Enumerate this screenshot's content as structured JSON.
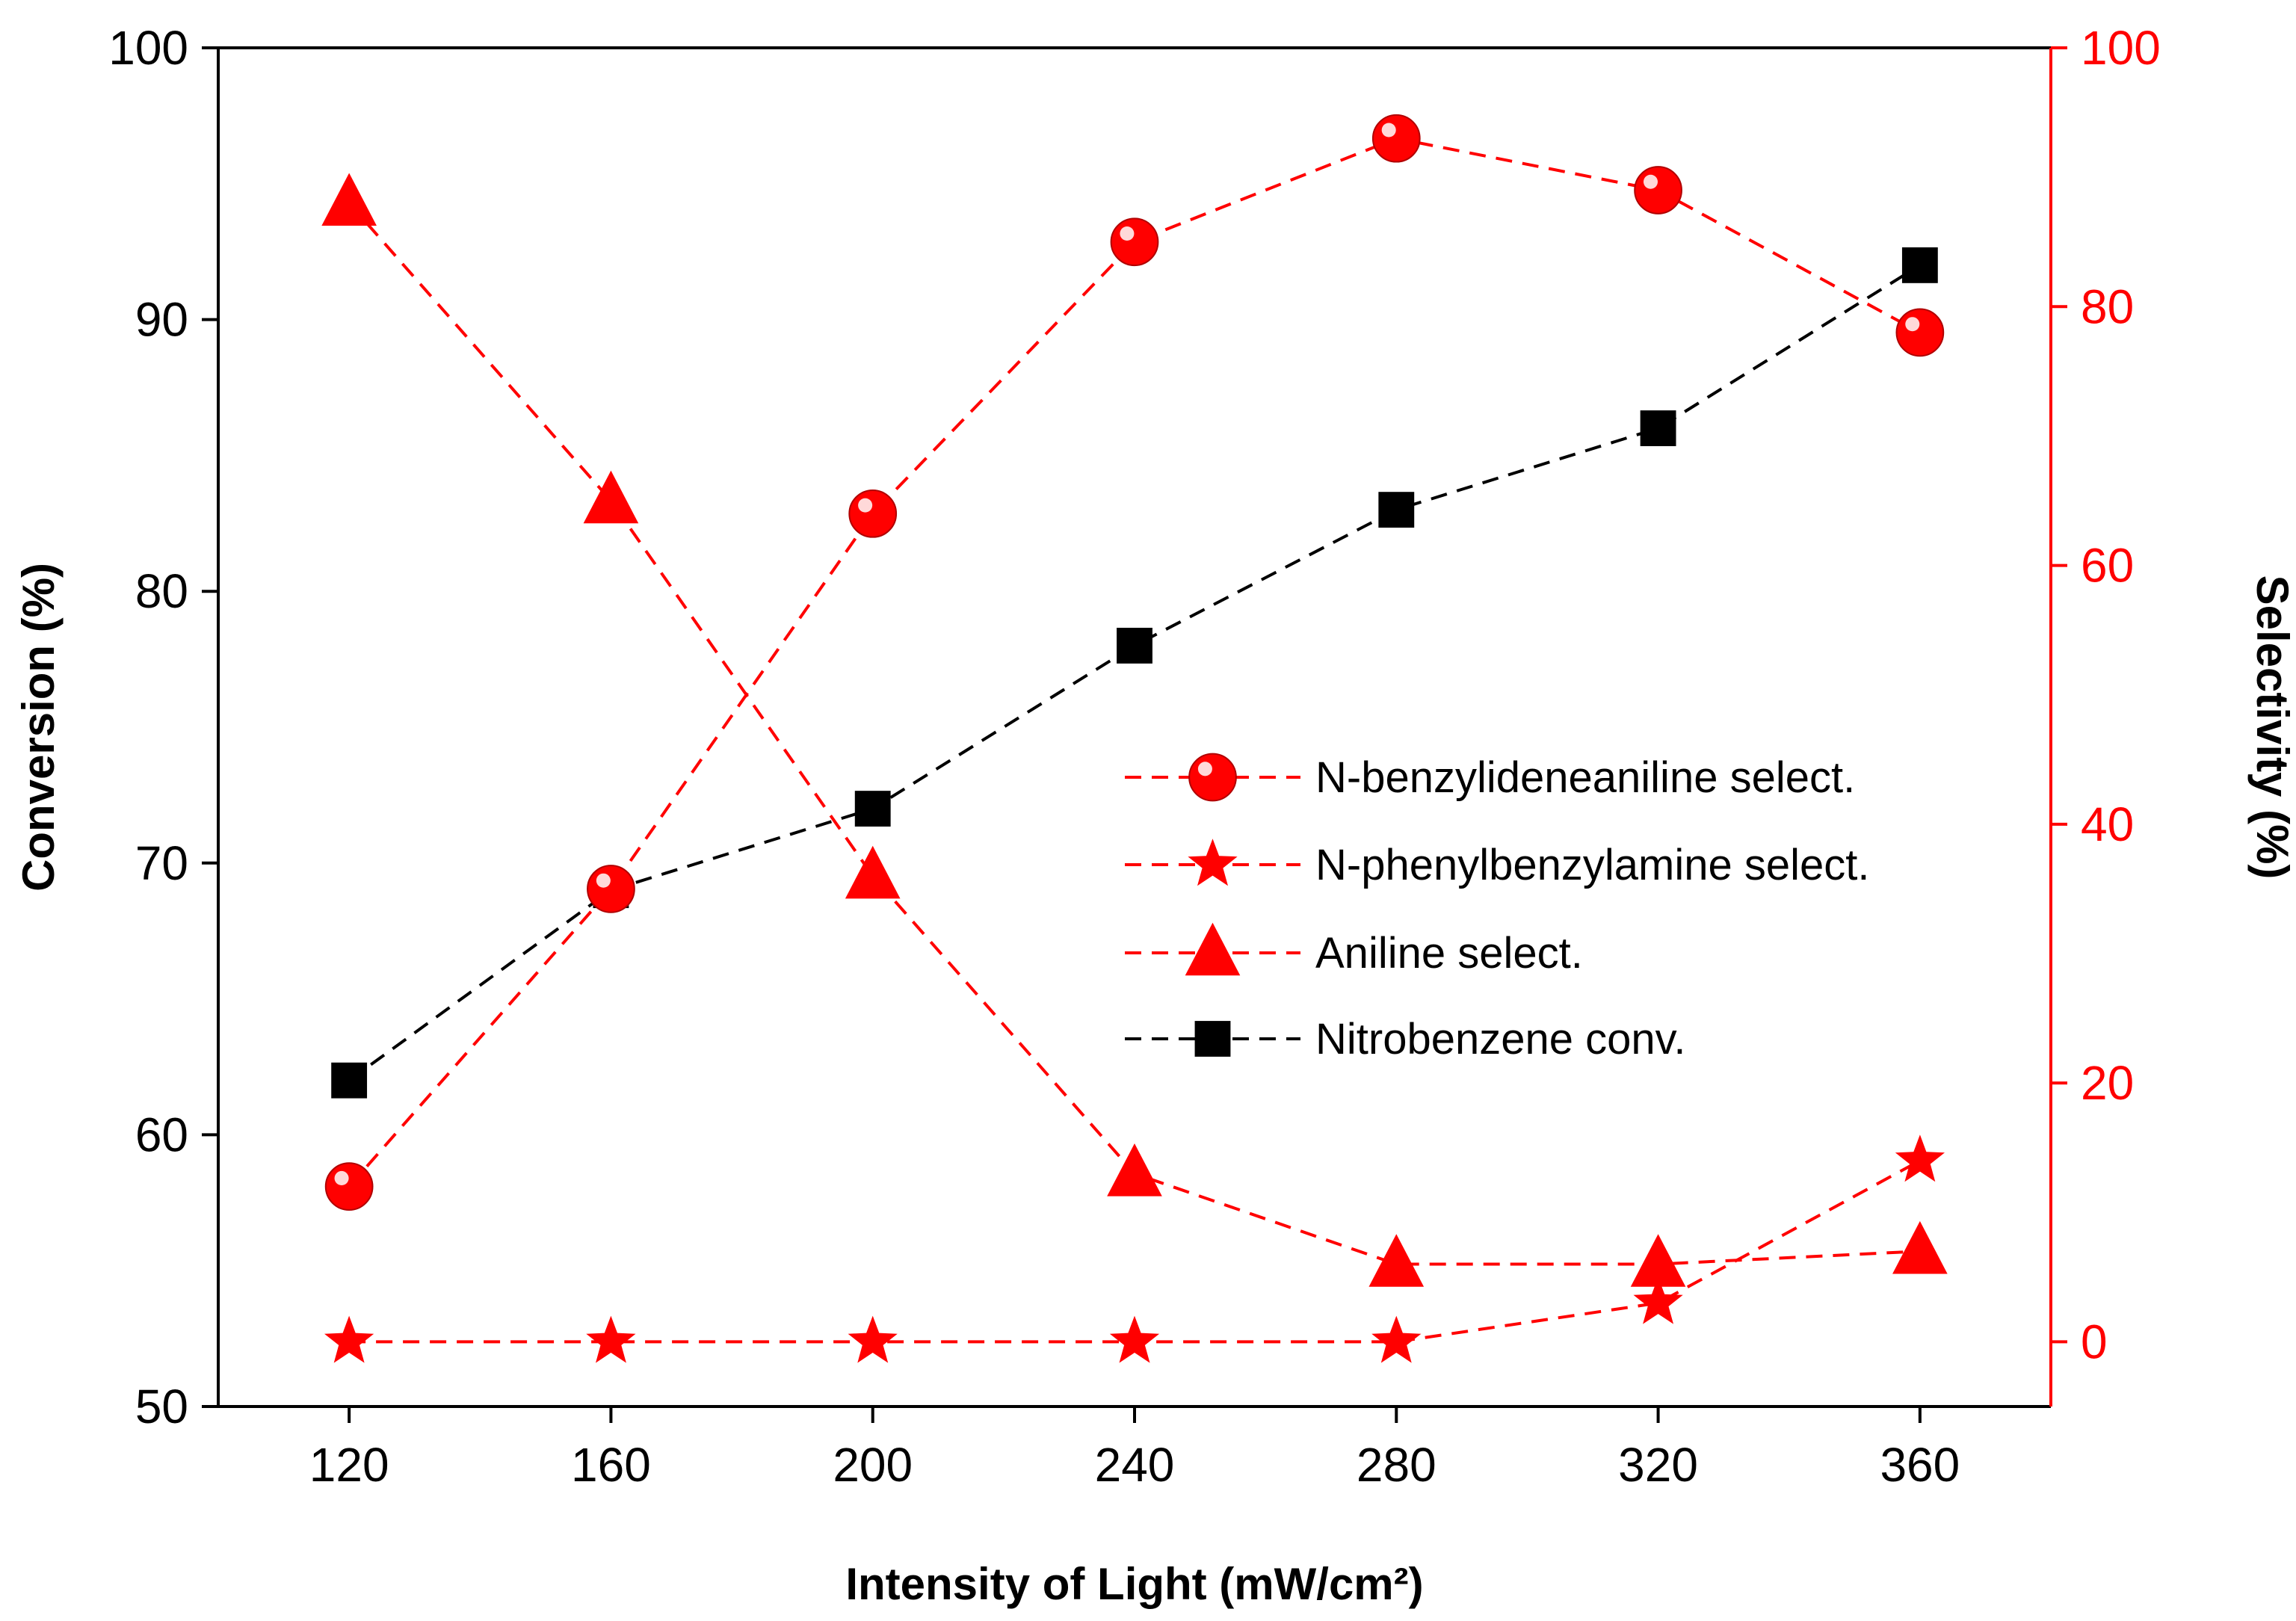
{
  "chart_data": {
    "type": "line",
    "x": [
      120,
      160,
      200,
      240,
      280,
      320,
      360
    ],
    "xlabel": "Intensity of Light (mW/cm²)",
    "xlim": [
      100,
      380
    ],
    "x_ticks": [
      "120",
      "160",
      "200",
      "240",
      "280",
      "320",
      "360"
    ],
    "left_axis": {
      "label": "Conversion (%)",
      "range": [
        50,
        100
      ],
      "ticks": [
        "50",
        "60",
        "70",
        "80",
        "90",
        "100"
      ],
      "color": "#000000"
    },
    "right_axis": {
      "label": "Selectivity (%)",
      "range": [
        -5,
        100
      ],
      "ticks": [
        "0",
        "20",
        "40",
        "60",
        "80",
        "100"
      ],
      "color": "#ff0000"
    },
    "series": [
      {
        "name": "N-benzylideneaniline select.",
        "axis": "right",
        "marker": "circle",
        "color": "#ff0000",
        "values": [
          12,
          35,
          64,
          85,
          93,
          89,
          78
        ]
      },
      {
        "name": "N-phenylbenzylamine select.",
        "axis": "right",
        "marker": "star",
        "color": "#ff0000",
        "values": [
          0,
          0,
          0,
          0,
          0,
          3,
          14
        ]
      },
      {
        "name": "Aniline select.",
        "axis": "right",
        "marker": "triangle",
        "color": "#ff0000",
        "values": [
          88,
          65,
          36,
          13,
          6,
          6,
          7
        ]
      },
      {
        "name": "Nitrobenzene conv.",
        "axis": "left",
        "marker": "square",
        "color": "#000000",
        "values": [
          62,
          69,
          72,
          78,
          83,
          86,
          92
        ]
      }
    ],
    "legend": {
      "position": "center-right",
      "order": [
        0,
        1,
        2,
        3
      ]
    }
  }
}
